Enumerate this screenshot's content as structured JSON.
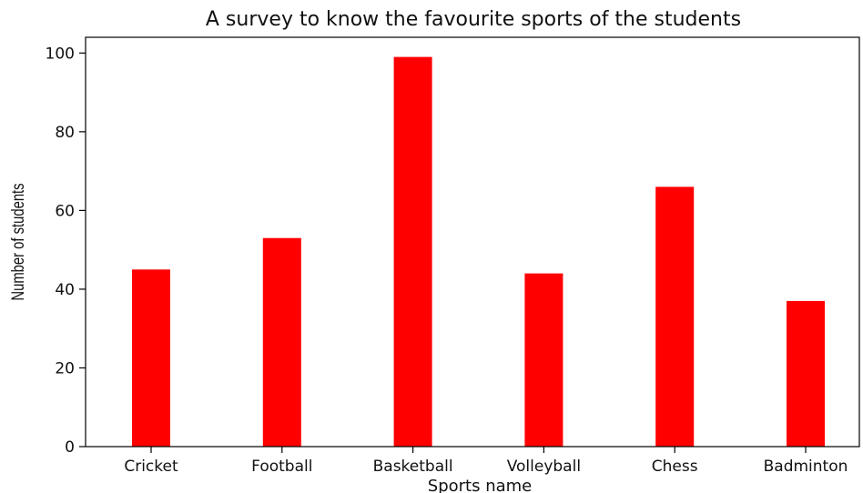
{
  "chart_data": {
    "type": "bar",
    "title": "A survey to know the favourite sports of the students",
    "xlabel": "Sports name",
    "ylabel": "Number of students",
    "categories": [
      "Cricket",
      "Football",
      "Basketball",
      "Volleyball",
      "Chess",
      "Badminton"
    ],
    "values": [
      45,
      53,
      99,
      44,
      66,
      37
    ],
    "ylim": [
      0,
      104
    ],
    "yticks": [
      0,
      20,
      40,
      60,
      80,
      100
    ],
    "bar_color": "#ff0000",
    "grid": false
  }
}
